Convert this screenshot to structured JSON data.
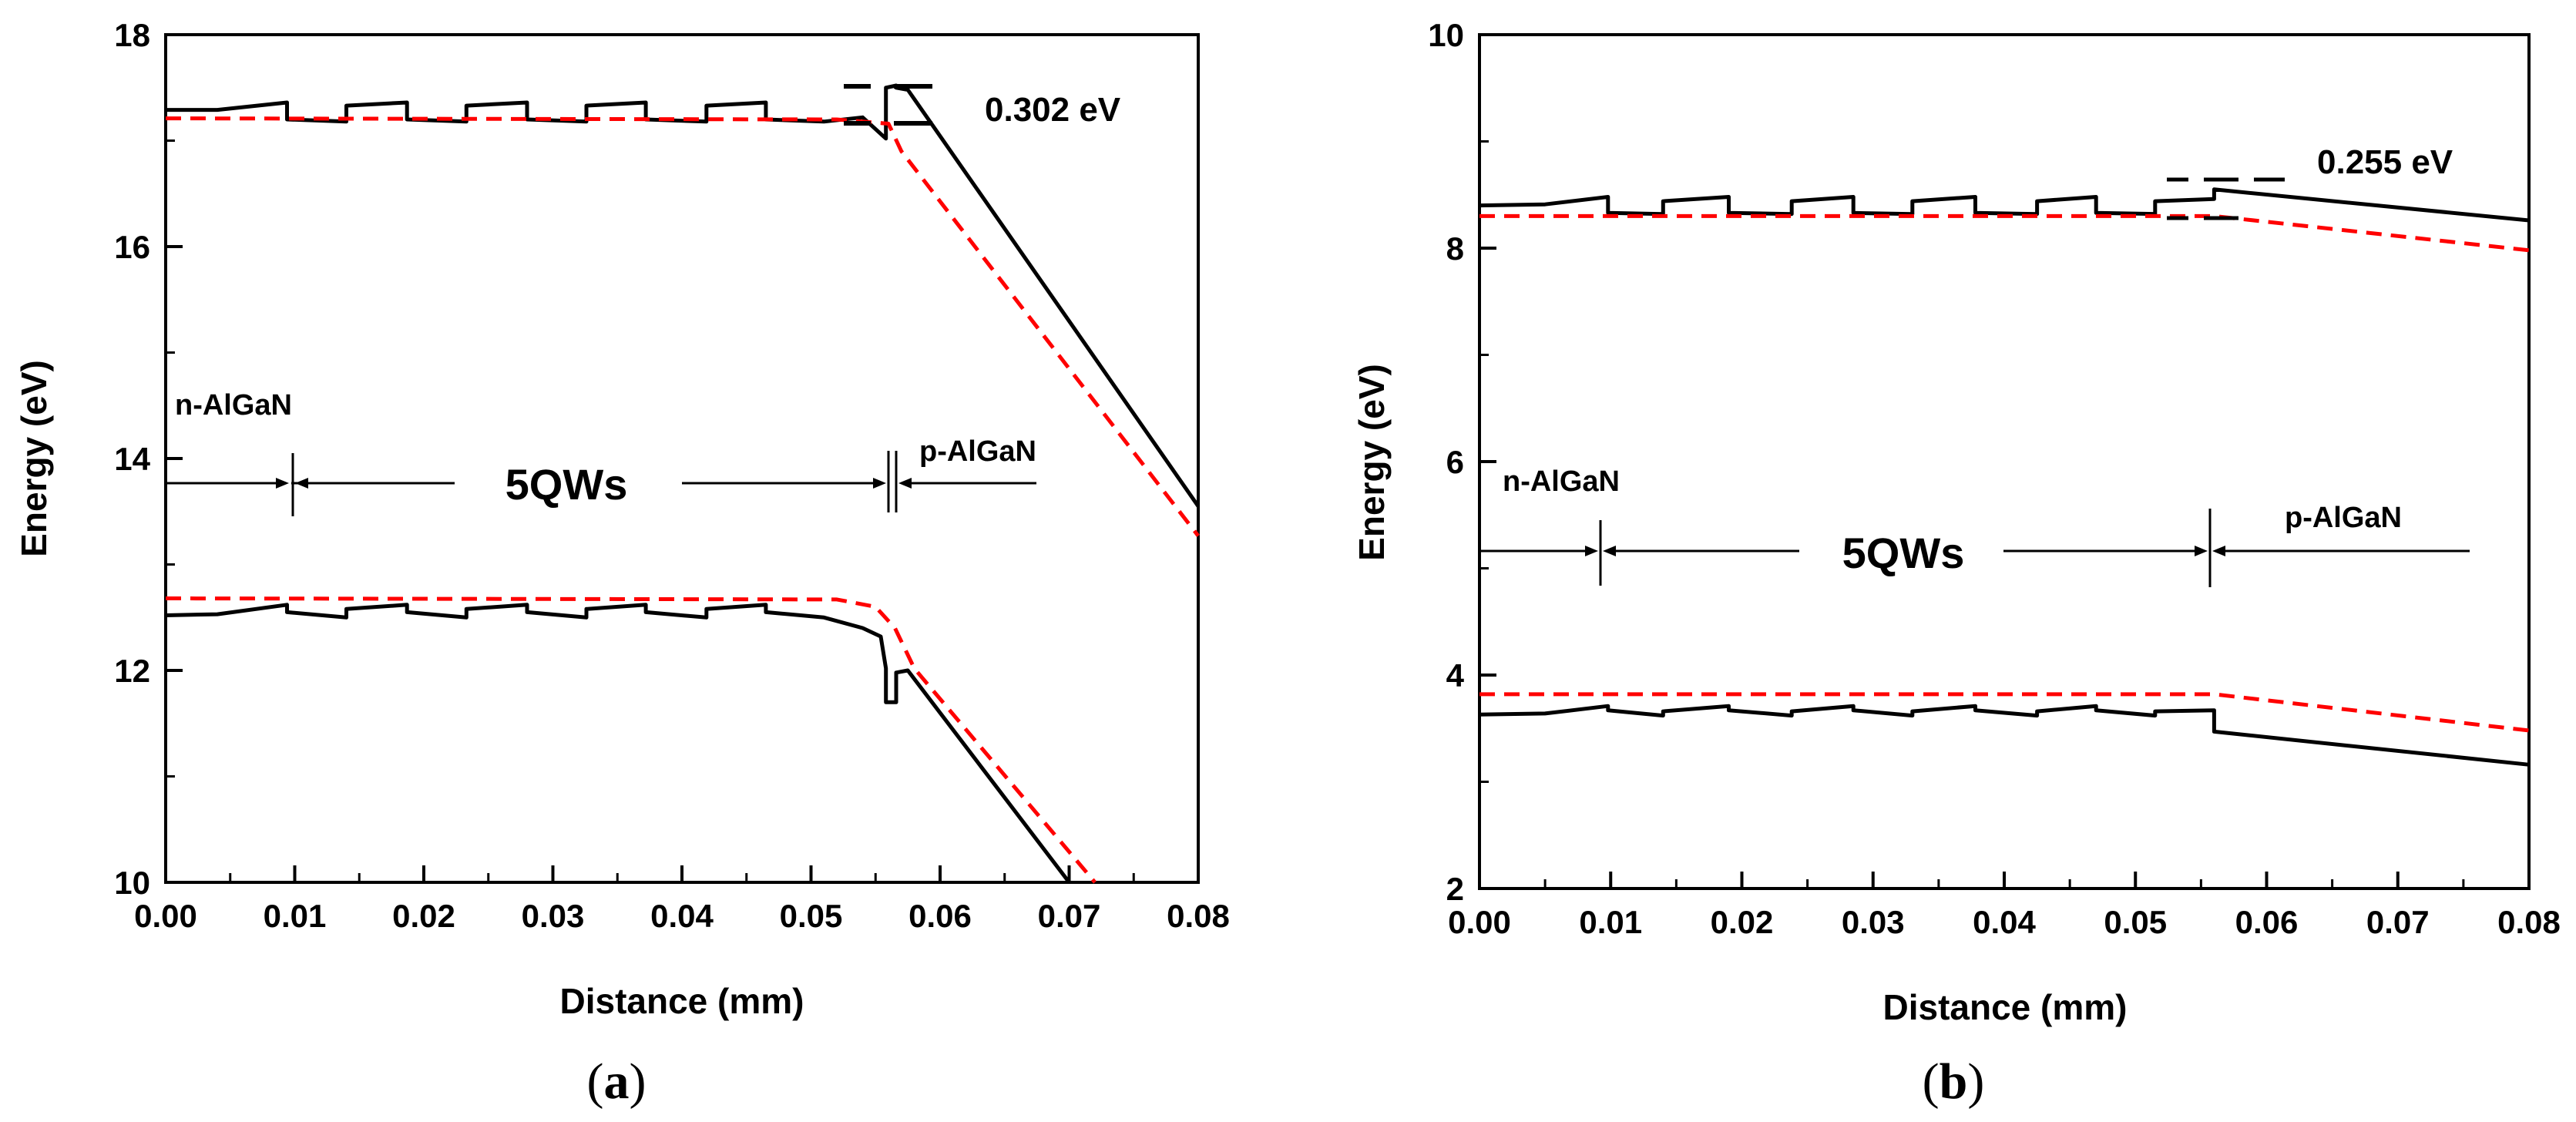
{
  "figure_captions": [
    {
      "open": "(",
      "letter": "a",
      "close": ")"
    },
    {
      "open": "(",
      "letter": "b",
      "close": ")"
    }
  ],
  "chart_data": [
    {
      "type": "line",
      "panel": "a",
      "xlabel": "Distance (mm)",
      "ylabel": "Energy (eV)",
      "xlim": [
        0,
        0.08
      ],
      "ylim": [
        10,
        18
      ],
      "xticks": [
        "0.00",
        "0.01",
        "0.02",
        "0.03",
        "0.04",
        "0.05",
        "0.06",
        "0.07",
        "0.08"
      ],
      "yticks": [
        "10",
        "12",
        "14",
        "16",
        "18"
      ],
      "annotations": {
        "n_layer": "n-AlGaN",
        "qw": "5QWs",
        "p_layer": "p-AlGaN",
        "barrier": "0.302 eV"
      },
      "series": [
        {
          "name": "conduction-band-black",
          "color": "#000000",
          "dash": false,
          "x": [
            0.0,
            0.004,
            0.0094,
            0.0094,
            0.014,
            0.014,
            0.0187,
            0.0187,
            0.0233,
            0.0233,
            0.028,
            0.028,
            0.0326,
            0.0326,
            0.0372,
            0.0372,
            0.0419,
            0.0419,
            0.0465,
            0.0465,
            0.051,
            0.054,
            0.0558,
            0.0558,
            0.0566,
            0.0566,
            0.0575,
            0.08
          ],
          "y": [
            17.29,
            17.29,
            17.36,
            17.2,
            17.18,
            17.33,
            17.36,
            17.2,
            17.18,
            17.33,
            17.36,
            17.2,
            17.18,
            17.33,
            17.36,
            17.2,
            17.18,
            17.33,
            17.36,
            17.2,
            17.18,
            17.22,
            17.02,
            17.5,
            17.52,
            17.5,
            17.48,
            13.55
          ]
        },
        {
          "name": "conduction-band-red",
          "color": "#ff0000",
          "dash": true,
          "x": [
            0.0,
            0.052,
            0.056,
            0.057,
            0.08
          ],
          "y": [
            17.21,
            17.2,
            17.16,
            16.9,
            13.27
          ]
        },
        {
          "name": "valence-band-black",
          "color": "#000000",
          "dash": false,
          "x": [
            0.0,
            0.004,
            0.0094,
            0.0094,
            0.014,
            0.014,
            0.0187,
            0.0187,
            0.0233,
            0.0233,
            0.028,
            0.028,
            0.0326,
            0.0326,
            0.0372,
            0.0372,
            0.0419,
            0.0419,
            0.0465,
            0.0465,
            0.051,
            0.054,
            0.0554,
            0.0558,
            0.0558,
            0.0566,
            0.0566,
            0.0575,
            0.07
          ],
          "y": [
            12.52,
            12.53,
            12.62,
            12.55,
            12.5,
            12.58,
            12.62,
            12.55,
            12.5,
            12.58,
            12.62,
            12.55,
            12.5,
            12.58,
            12.62,
            12.55,
            12.5,
            12.58,
            12.62,
            12.55,
            12.5,
            12.4,
            12.32,
            12.02,
            11.7,
            11.7,
            11.98,
            12.0,
            10.0
          ]
        },
        {
          "name": "valence-band-red",
          "color": "#ff0000",
          "dash": true,
          "x": [
            0.0,
            0.052,
            0.055,
            0.0565,
            0.058,
            0.072
          ],
          "y": [
            12.68,
            12.67,
            12.6,
            12.4,
            12.02,
            10.0
          ]
        }
      ]
    },
    {
      "type": "line",
      "panel": "b",
      "xlabel": "Distance (mm)",
      "ylabel": "Energy (eV)",
      "xlim": [
        0,
        0.08
      ],
      "ylim": [
        2,
        10
      ],
      "xticks": [
        "0.00",
        "0.01",
        "0.02",
        "0.03",
        "0.04",
        "0.05",
        "0.06",
        "0.07",
        "0.08"
      ],
      "yticks": [
        "2",
        "4",
        "6",
        "8",
        "10"
      ],
      "annotations": {
        "n_layer": "n-AlGaN",
        "qw": "5QWs",
        "p_layer": "p-AlGaN",
        "barrier": "0.255 eV"
      },
      "series": [
        {
          "name": "conduction-band-black",
          "color": "#000000",
          "dash": false,
          "x": [
            0.0,
            0.005,
            0.0098,
            0.0098,
            0.014,
            0.014,
            0.019,
            0.019,
            0.0238,
            0.0238,
            0.0285,
            0.0285,
            0.033,
            0.033,
            0.0378,
            0.0378,
            0.0425,
            0.0425,
            0.047,
            0.047,
            0.0515,
            0.0515,
            0.056,
            0.056,
            0.08
          ],
          "y": [
            8.4,
            8.41,
            8.48,
            8.33,
            8.32,
            8.44,
            8.48,
            8.33,
            8.32,
            8.44,
            8.48,
            8.33,
            8.32,
            8.44,
            8.48,
            8.33,
            8.32,
            8.44,
            8.48,
            8.33,
            8.32,
            8.44,
            8.46,
            8.55,
            8.26
          ]
        },
        {
          "name": "conduction-band-red",
          "color": "#ff0000",
          "dash": true,
          "x": [
            0.0,
            0.056,
            0.08
          ],
          "y": [
            8.3,
            8.3,
            7.98
          ]
        },
        {
          "name": "valence-band-black",
          "color": "#000000",
          "dash": false,
          "x": [
            0.0,
            0.005,
            0.0098,
            0.0098,
            0.014,
            0.014,
            0.019,
            0.019,
            0.0238,
            0.0238,
            0.0285,
            0.0285,
            0.033,
            0.033,
            0.0378,
            0.0378,
            0.0425,
            0.0425,
            0.047,
            0.047,
            0.0515,
            0.0515,
            0.056,
            0.056,
            0.08
          ],
          "y": [
            3.63,
            3.64,
            3.71,
            3.67,
            3.62,
            3.66,
            3.71,
            3.67,
            3.62,
            3.66,
            3.71,
            3.67,
            3.62,
            3.66,
            3.71,
            3.67,
            3.62,
            3.66,
            3.71,
            3.67,
            3.62,
            3.66,
            3.67,
            3.47,
            3.16
          ]
        },
        {
          "name": "valence-band-red",
          "color": "#ff0000",
          "dash": true,
          "x": [
            0.0,
            0.056,
            0.08
          ],
          "y": [
            3.82,
            3.82,
            3.48
          ]
        }
      ]
    }
  ]
}
